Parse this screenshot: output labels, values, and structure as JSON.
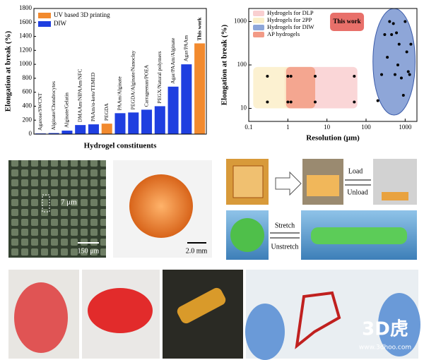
{
  "chart_data": [
    {
      "type": "bar",
      "xlabel": "Hydrogel constituents",
      "ylabel": "Elongation at break (%)",
      "categories": [
        "Agarose/SWCNT",
        "Alginate/Chondrocytes",
        "Alginate/Gelatin",
        "DMAAm/NIPAAm/NFC",
        "PAAm/α-keto/TEMED",
        "PEGDA",
        "PAAm/Alginate",
        "PEGDA/Alginate/Nanoclay",
        "Carrageenan/POEA",
        "PEGX/Natural polymers",
        "Agar/PAAm/Alginate",
        "Agar/PAAm",
        "This work"
      ],
      "series": [
        {
          "name": "UV based 3D printing",
          "color": "#f28a2e",
          "values": [
            null,
            null,
            null,
            null,
            null,
            150,
            null,
            null,
            null,
            null,
            null,
            null,
            1300
          ]
        },
        {
          "name": "DIW",
          "color": "#1f3fe0",
          "values": [
            10,
            15,
            50,
            130,
            140,
            null,
            300,
            310,
            350,
            400,
            680,
            1000,
            null
          ]
        }
      ],
      "ylim": [
        0,
        1800
      ],
      "yticks": [
        0,
        200,
        400,
        600,
        800,
        1000,
        1200,
        1400,
        1600,
        1800
      ]
    },
    {
      "type": "scatter",
      "xlabel": "Resolution (μm)",
      "ylabel": "Elongation at break (%)",
      "xscale": "log",
      "yscale": "log",
      "xlim": [
        0.1,
        2000
      ],
      "ylim": [
        5,
        2000
      ],
      "xticks": [
        0.1,
        1,
        10,
        100,
        1000
      ],
      "yticks": [
        10,
        100,
        1000
      ],
      "regions": [
        {
          "name": "Hydrogels for DLP",
          "color": "#f9cfd0",
          "shape": "rect",
          "x": [
            0.8,
            60
          ],
          "y": [
            10,
            90
          ]
        },
        {
          "name": "Hydrogels for 2PP",
          "color": "#fbefc9",
          "shape": "rect",
          "x": [
            0.13,
            5
          ],
          "y": [
            10,
            90
          ]
        },
        {
          "name": "Hydrogels for DIW",
          "color": "#8ea6d8",
          "shape": "ellipse",
          "x": [
            150,
            1800
          ],
          "y": [
            7,
            2000
          ]
        },
        {
          "name": "AP hydrogels",
          "color": "#f29a86",
          "shape": "rect",
          "x": [
            0.9,
            5
          ],
          "y": [
            10,
            90
          ]
        }
      ],
      "annotation": "This work",
      "x": [
        0.3,
        0.3,
        1,
        1.2,
        1,
        1.2,
        5,
        5,
        50,
        50,
        200,
        250,
        300,
        400,
        450,
        500,
        550,
        600,
        700,
        800,
        900,
        1000,
        1100,
        1300,
        1400,
        350,
        650,
        1200
      ],
      "values": [
        55,
        14,
        55,
        55,
        14,
        14,
        55,
        14,
        55,
        14,
        15,
        60,
        500,
        1000,
        500,
        900,
        60,
        550,
        300,
        50,
        20,
        1000,
        200,
        60,
        300,
        150,
        100,
        70
      ],
      "color": "#000000"
    }
  ],
  "panels": {
    "micro_label": "7 μm",
    "scale_a": "150 μm",
    "scale_b": "2.0 mm",
    "load": "Load",
    "unload": "Unload",
    "stretch": "Stretch",
    "unstretch": "Unstretch"
  },
  "watermark": {
    "logo": "3D虎",
    "url": "www.3dhoo.com"
  }
}
